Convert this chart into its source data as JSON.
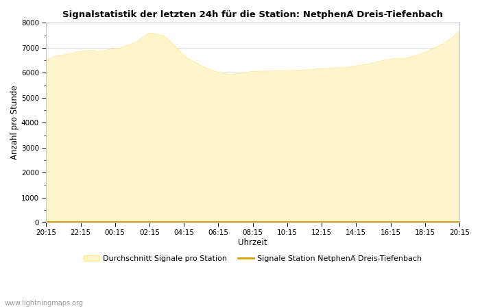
{
  "title": "Signalstatistik der letzten 24h für die Station: NetphenÄ Dreis-Tiefenbach",
  "xlabel": "Uhrzeit",
  "ylabel": "Anzahl pro Stunde",
  "xlabels": [
    "20:15",
    "22:15",
    "00:15",
    "02:15",
    "04:15",
    "06:15",
    "08:15",
    "10:15",
    "12:15",
    "14:15",
    "16:15",
    "18:15",
    "20:15"
  ],
  "ylim": [
    0,
    8000
  ],
  "yticks": [
    0,
    1000,
    2000,
    3000,
    4000,
    5000,
    6000,
    7000,
    8000
  ],
  "fill_color": "#FFF5CC",
  "fill_edge_color": "#FFE680",
  "line_color": "#D4A000",
  "background_color": "#ffffff",
  "grid_color": "#cccccc",
  "watermark": "www.lightningmaps.org",
  "legend_fill_label": "Durchschnitt Signale pro Station",
  "legend_line_label": "Signale Station NetphenÄ Dreis-Tiefenbach",
  "avg_values": [
    6520,
    6650,
    6700,
    6750,
    6820,
    6870,
    6900,
    6850,
    6900,
    6950,
    7000,
    7100,
    7200,
    7400,
    7600,
    7550,
    7480,
    7200,
    6900,
    6600,
    6450,
    6280,
    6150,
    6050,
    5980,
    5920,
    5970,
    6010,
    6050,
    6060,
    6060,
    6070,
    6080,
    6090,
    6100,
    6110,
    6130,
    6160,
    6170,
    6200,
    6200,
    6230,
    6280,
    6320,
    6380,
    6440,
    6520,
    6560,
    6560,
    6600,
    6680,
    6780,
    6900,
    7050,
    7200,
    7400,
    7680
  ],
  "station_values": [
    30,
    30,
    30,
    30,
    30,
    30,
    30,
    30,
    30,
    30,
    30,
    30,
    30,
    30,
    30,
    30,
    30,
    30,
    30,
    30,
    30,
    30,
    30,
    30,
    30,
    30,
    30,
    30,
    30,
    30,
    30,
    30,
    30,
    30,
    30,
    30,
    30,
    30,
    30,
    30,
    30,
    30,
    30,
    30,
    30,
    30,
    30,
    30,
    30,
    30,
    30,
    30,
    30,
    30,
    30,
    30,
    30
  ]
}
